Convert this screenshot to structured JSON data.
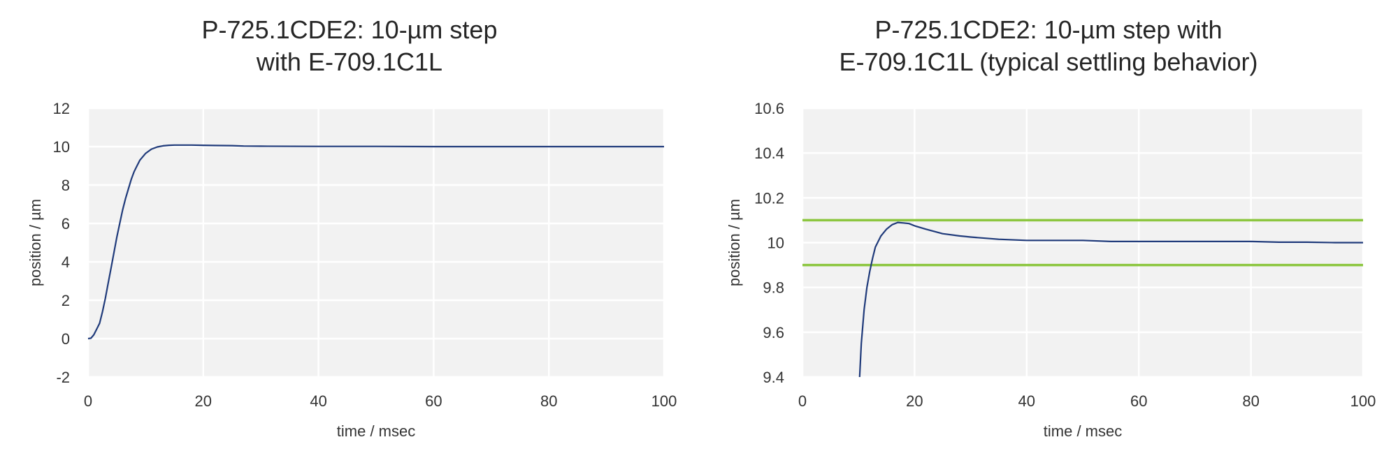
{
  "chart_data": [
    {
      "type": "line",
      "title_lines": [
        "P-725.1CDE2: 10-µm step",
        "with E-709.1C1L"
      ],
      "xlabel": "time / msec",
      "ylabel": "position / µm",
      "xlim": [
        0,
        100
      ],
      "ylim": [
        -2,
        12
      ],
      "xticks": [
        0,
        20,
        40,
        60,
        80,
        100
      ],
      "yticks": [
        -2,
        0,
        2,
        4,
        6,
        8,
        10,
        12
      ],
      "xtick_labels": [
        "0",
        "20",
        "40",
        "60",
        "80",
        "100"
      ],
      "ytick_labels": [
        "-2",
        "0",
        "2",
        "4",
        "6",
        "8",
        "10",
        "12"
      ],
      "grid": true,
      "legend": "none",
      "series": [
        {
          "color": "#1f3a7a",
          "x": [
            0,
            0.5,
            1,
            1.5,
            2,
            2.5,
            3,
            3.5,
            4,
            4.5,
            5,
            5.5,
            6,
            6.5,
            7,
            7.5,
            8,
            8.5,
            9,
            10,
            11,
            12,
            13,
            14,
            15,
            16,
            17,
            18,
            20,
            22,
            25,
            27,
            30,
            40,
            50,
            60,
            70,
            80,
            90,
            100
          ],
          "y": [
            0,
            0.02,
            0.2,
            0.5,
            0.8,
            1.4,
            2.1,
            2.9,
            3.7,
            4.5,
            5.3,
            6.0,
            6.7,
            7.3,
            7.8,
            8.3,
            8.7,
            9.0,
            9.3,
            9.65,
            9.87,
            9.98,
            10.04,
            10.07,
            10.08,
            10.08,
            10.08,
            10.08,
            10.07,
            10.06,
            10.05,
            10.03,
            10.02,
            10.01,
            10.01,
            10.0,
            10.0,
            10.0,
            10.0,
            10.0
          ]
        }
      ]
    },
    {
      "type": "line",
      "title_lines": [
        "P-725.1CDE2: 10-µm step with",
        "E-709.1C1L (typical settling behavior)"
      ],
      "xlabel": "time / msec",
      "ylabel": "position / µm",
      "xlim": [
        0,
        100
      ],
      "ylim": [
        9.4,
        10.6
      ],
      "xticks": [
        0,
        20,
        40,
        60,
        80,
        100
      ],
      "yticks": [
        9.4,
        9.6,
        9.8,
        10.0,
        10.2,
        10.4,
        10.6
      ],
      "xtick_labels": [
        "0",
        "20",
        "40",
        "60",
        "80",
        "100"
      ],
      "ytick_labels": [
        "9.4",
        "9.6",
        "9.8",
        "10",
        "10.2",
        "10.4",
        "10.6"
      ],
      "grid": true,
      "legend": "none",
      "series": [
        {
          "color": "#1f3a7a",
          "x": [
            10.2,
            10.5,
            11,
            11.5,
            12,
            12.5,
            13,
            14,
            15,
            16,
            17,
            18,
            19,
            20,
            22,
            25,
            28,
            30,
            35,
            40,
            45,
            50,
            55,
            60,
            65,
            70,
            75,
            80,
            85,
            90,
            95,
            100
          ],
          "y": [
            9.4,
            9.55,
            9.7,
            9.8,
            9.87,
            9.93,
            9.98,
            10.03,
            10.06,
            10.08,
            10.09,
            10.088,
            10.085,
            10.075,
            10.06,
            10.04,
            10.03,
            10.025,
            10.015,
            10.01,
            10.01,
            10.01,
            10.005,
            10.005,
            10.005,
            10.005,
            10.005,
            10.005,
            10.002,
            10.002,
            10.0,
            10.0
          ]
        }
      ],
      "reference_lines": [
        {
          "y": 10.1,
          "color": "#8cc63f"
        },
        {
          "y": 9.9,
          "color": "#8cc63f"
        }
      ]
    }
  ]
}
